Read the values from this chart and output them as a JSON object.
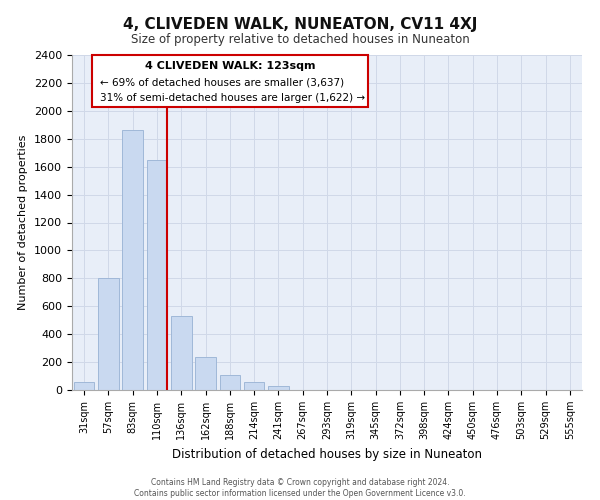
{
  "title": "4, CLIVEDEN WALK, NUNEATON, CV11 4XJ",
  "subtitle": "Size of property relative to detached houses in Nuneaton",
  "xlabel": "Distribution of detached houses by size in Nuneaton",
  "ylabel": "Number of detached properties",
  "bar_labels": [
    "31sqm",
    "57sqm",
    "83sqm",
    "110sqm",
    "136sqm",
    "162sqm",
    "188sqm",
    "214sqm",
    "241sqm",
    "267sqm",
    "293sqm",
    "319sqm",
    "345sqm",
    "372sqm",
    "398sqm",
    "424sqm",
    "450sqm",
    "476sqm",
    "503sqm",
    "529sqm",
    "555sqm"
  ],
  "bar_values": [
    55,
    800,
    1860,
    1650,
    530,
    240,
    110,
    55,
    30,
    0,
    0,
    0,
    0,
    0,
    0,
    0,
    0,
    0,
    0,
    0,
    0
  ],
  "bar_color": "#c9d9f0",
  "bar_edge_color": "#a0b8d8",
  "vline_color": "#cc0000",
  "ylim": [
    0,
    2400
  ],
  "yticks": [
    0,
    200,
    400,
    600,
    800,
    1000,
    1200,
    1400,
    1600,
    1800,
    2000,
    2200,
    2400
  ],
  "annotation_title": "4 CLIVEDEN WALK: 123sqm",
  "annotation_line1": "← 69% of detached houses are smaller (3,637)",
  "annotation_line2": "31% of semi-detached houses are larger (1,622) →",
  "footer_line1": "Contains HM Land Registry data © Crown copyright and database right 2024.",
  "footer_line2": "Contains public sector information licensed under the Open Government Licence v3.0.",
  "grid_color": "#d0d8e8",
  "background_color": "#e8eef8"
}
